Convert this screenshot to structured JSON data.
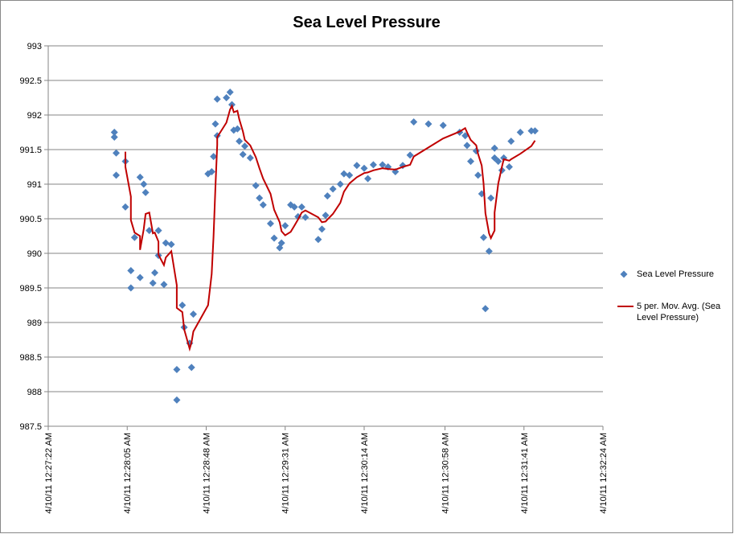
{
  "chart_data": {
    "type": "scatter",
    "title": "Sea Level Pressure",
    "x": [
      "4/10/11 12:27:58 AM",
      "4/10/11 12:27:58 AM",
      "4/10/11 12:27:59 AM",
      "4/10/11 12:27:59 AM",
      "4/10/11 12:28:04 AM",
      "4/10/11 12:28:04 AM",
      "4/10/11 12:28:07 AM",
      "4/10/11 12:28:07 AM",
      "4/10/11 12:28:09 AM",
      "4/10/11 12:28:12 AM",
      "4/10/11 12:28:12 AM",
      "4/10/11 12:28:14 AM",
      "4/10/11 12:28:15 AM",
      "4/10/11 12:28:17 AM",
      "4/10/11 12:28:19 AM",
      "4/10/11 12:28:20 AM",
      "4/10/11 12:28:22 AM",
      "4/10/11 12:28:22 AM",
      "4/10/11 12:28:25 AM",
      "4/10/11 12:28:26 AM",
      "4/10/11 12:28:29 AM",
      "4/10/11 12:28:32 AM",
      "4/10/11 12:28:32 AM",
      "4/10/11 12:28:35 AM",
      "4/10/11 12:28:36 AM",
      "4/10/11 12:28:39 AM",
      "4/10/11 12:28:40 AM",
      "4/10/11 12:28:41 AM",
      "4/10/11 12:28:49 AM",
      "4/10/11 12:28:51 AM",
      "4/10/11 12:28:52 AM",
      "4/10/11 12:28:53 AM",
      "4/10/11 12:28:54 AM",
      "4/10/11 12:28:54 AM",
      "4/10/11 12:28:59 AM",
      "4/10/11 12:29:01 AM",
      "4/10/11 12:29:02 AM",
      "4/10/11 12:29:03 AM",
      "4/10/11 12:29:05 AM",
      "4/10/11 12:29:06 AM",
      "4/10/11 12:29:08 AM",
      "4/10/11 12:29:09 AM",
      "4/10/11 12:29:12 AM",
      "4/10/11 12:29:15 AM",
      "4/10/11 12:29:17 AM",
      "4/10/11 12:29:19 AM",
      "4/10/11 12:29:23 AM",
      "4/10/11 12:29:25 AM",
      "4/10/11 12:29:28 AM",
      "4/10/11 12:29:29 AM",
      "4/10/11 12:29:31 AM",
      "4/10/11 12:29:34 AM",
      "4/10/11 12:29:36 AM",
      "4/10/11 12:29:38 AM",
      "4/10/11 12:29:40 AM",
      "4/10/11 12:29:42 AM",
      "4/10/11 12:29:49 AM",
      "4/10/11 12:29:51 AM",
      "4/10/11 12:29:53 AM",
      "4/10/11 12:29:54 AM",
      "4/10/11 12:29:57 AM",
      "4/10/11 12:30:01 AM",
      "4/10/11 12:30:03 AM",
      "4/10/11 12:30:06 AM",
      "4/10/11 12:30:10 AM",
      "4/10/11 12:30:14 AM",
      "4/10/11 12:30:16 AM",
      "4/10/11 12:30:19 AM",
      "4/10/11 12:30:24 AM",
      "4/10/11 12:30:27 AM",
      "4/10/11 12:30:31 AM",
      "4/10/11 12:30:35 AM",
      "4/10/11 12:30:39 AM",
      "4/10/11 12:30:41 AM",
      "4/10/11 12:30:49 AM",
      "4/10/11 12:30:57 AM",
      "4/10/11 12:31:06 AM",
      "4/10/11 12:31:09 AM",
      "4/10/11 12:31:10 AM",
      "4/10/11 12:31:12 AM",
      "4/10/11 12:31:15 AM",
      "4/10/11 12:31:16 AM",
      "4/10/11 12:31:18 AM",
      "4/10/11 12:31:19 AM",
      "4/10/11 12:31:20 AM",
      "4/10/11 12:31:22 AM",
      "4/10/11 12:31:23 AM",
      "4/10/11 12:31:25 AM",
      "4/10/11 12:31:25 AM",
      "4/10/11 12:31:27 AM",
      "4/10/11 12:31:29 AM",
      "4/10/11 12:31:30 AM",
      "4/10/11 12:31:33 AM",
      "4/10/11 12:31:34 AM",
      "4/10/11 12:31:39 AM",
      "4/10/11 12:31:45 AM",
      "4/10/11 12:31:47 AM"
    ],
    "series": [
      {
        "name": "Sea Level Pressure",
        "color": "#4f81bd",
        "marker": "diamond",
        "values": [
          991.75,
          991.68,
          991.45,
          991.13,
          991.33,
          990.67,
          989.5,
          989.75,
          990.23,
          991.1,
          989.65,
          991.0,
          990.88,
          990.33,
          989.57,
          989.72,
          990.33,
          989.97,
          989.55,
          990.15,
          990.13,
          987.88,
          988.32,
          989.25,
          988.93,
          988.7,
          988.35,
          989.12,
          991.15,
          991.18,
          991.4,
          991.87,
          992.23,
          991.7,
          992.25,
          992.33,
          992.15,
          991.78,
          991.8,
          991.62,
          991.43,
          991.55,
          991.38,
          990.98,
          990.8,
          990.7,
          990.43,
          990.22,
          990.08,
          990.15,
          990.4,
          990.7,
          990.67,
          990.53,
          990.67,
          990.52,
          990.2,
          990.35,
          990.55,
          990.83,
          990.93,
          991.0,
          991.15,
          991.13,
          991.27,
          991.23,
          991.08,
          991.28,
          991.28,
          991.25,
          991.18,
          991.27,
          991.42,
          991.9,
          991.87,
          991.85,
          991.75,
          991.7,
          991.56,
          991.33,
          991.48,
          991.13,
          990.86,
          990.23,
          989.2,
          990.03,
          990.8,
          991.38,
          991.52,
          991.33,
          991.2,
          991.38,
          991.25,
          991.62,
          991.75,
          991.77,
          991.77
        ]
      },
      {
        "name": "5 per. Mov. Avg. (Sea Level Pressure)",
        "color": "#c00000",
        "type": "line",
        "values": [
          null,
          null,
          null,
          null,
          991.47,
          991.25,
          990.82,
          990.48,
          990.3,
          990.25,
          990.05,
          990.35,
          990.57,
          990.59,
          990.29,
          990.3,
          990.17,
          989.98,
          989.83,
          989.94,
          990.03,
          989.54,
          989.21,
          989.15,
          988.9,
          988.62,
          988.71,
          988.87,
          989.25,
          989.7,
          990.24,
          990.94,
          991.57,
          991.68,
          991.89,
          992.08,
          992.13,
          992.04,
          992.06,
          991.94,
          991.76,
          991.64,
          991.56,
          991.39,
          991.23,
          991.08,
          990.86,
          990.63,
          990.45,
          990.32,
          990.26,
          990.31,
          990.4,
          990.49,
          990.59,
          990.62,
          990.52,
          990.45,
          990.46,
          990.49,
          990.57,
          990.73,
          990.89,
          991.01,
          991.1,
          991.16,
          991.17,
          991.2,
          991.23,
          991.22,
          991.21,
          991.25,
          991.28,
          991.4,
          991.53,
          991.66,
          991.76,
          991.81,
          991.75,
          991.64,
          991.56,
          991.44,
          991.27,
          991.01,
          990.58,
          990.29,
          990.22,
          990.33,
          990.59,
          991.01,
          991.25,
          991.36,
          991.34,
          991.36,
          991.44,
          991.55,
          991.63
        ]
      }
    ],
    "xlim": [
      "4/10/11 12:27:22 AM",
      "4/10/11 12:32:24 AM"
    ],
    "xticks": [
      "4/10/11 12:27:22 AM",
      "4/10/11 12:28:05 AM",
      "4/10/11 12:28:48 AM",
      "4/10/11 12:29:31 AM",
      "4/10/11 12:30:14 AM",
      "4/10/11 12:30:58 AM",
      "4/10/11 12:31:41 AM",
      "4/10/11 12:32:24 AM"
    ],
    "ylim": [
      987.5,
      993
    ],
    "yticks": [
      987.5,
      988,
      988.5,
      989,
      989.5,
      990,
      990.5,
      991,
      991.5,
      992,
      992.5,
      993
    ],
    "grid": true,
    "legend": "right"
  }
}
